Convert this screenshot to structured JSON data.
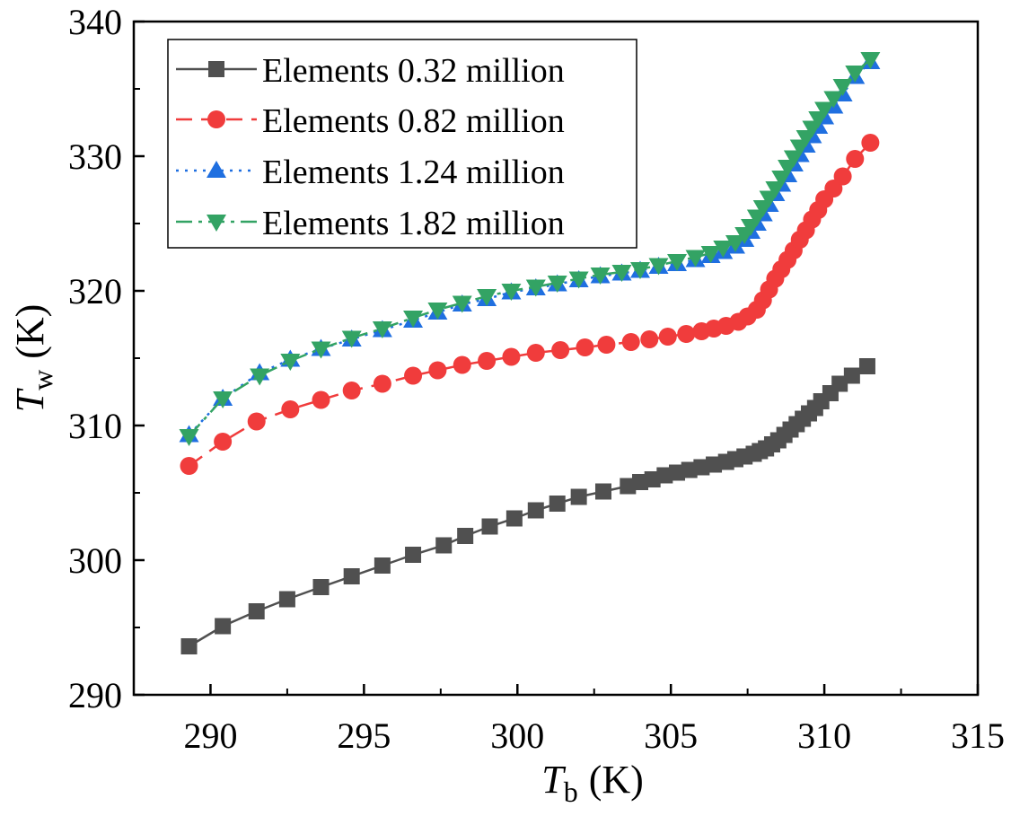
{
  "chart_data": {
    "type": "line",
    "xlabel": {
      "symbol": "T",
      "sub": "b",
      "unit": "(K)"
    },
    "ylabel": {
      "symbol": "T",
      "sub": "w",
      "unit": "(K)"
    },
    "xlim": [
      287.5,
      315
    ],
    "ylim": [
      290,
      340
    ],
    "xticks": [
      290,
      295,
      300,
      305,
      310,
      315
    ],
    "yticks": [
      290,
      300,
      310,
      320,
      330,
      340
    ],
    "xtick_labels": [
      "290",
      "295",
      "300",
      "305",
      "310",
      "315"
    ],
    "ytick_labels": [
      "290",
      "300",
      "310",
      "320",
      "330",
      "340"
    ],
    "legend_position": "top-left",
    "series": [
      {
        "name": "Elements 0.32 million",
        "color": "#505050",
        "dash": "solid",
        "marker": "square",
        "x": [
          289.3,
          290.4,
          291.5,
          292.5,
          293.6,
          294.6,
          295.6,
          296.6,
          297.6,
          298.3,
          299.1,
          299.9,
          300.6,
          301.3,
          302.0,
          302.8,
          303.6,
          304.0,
          304.4,
          304.8,
          305.2,
          305.6,
          306.0,
          306.4,
          306.8,
          307.1,
          307.4,
          307.7,
          307.9,
          308.1,
          308.3,
          308.5,
          308.7,
          308.9,
          309.1,
          309.3,
          309.5,
          309.7,
          309.9,
          310.2,
          310.5,
          310.9,
          311.4
        ],
        "y": [
          293.6,
          295.1,
          296.2,
          297.1,
          298.0,
          298.8,
          299.6,
          300.4,
          301.1,
          301.8,
          302.5,
          303.1,
          303.7,
          304.2,
          304.7,
          305.1,
          305.5,
          305.8,
          306.0,
          306.3,
          306.5,
          306.7,
          306.9,
          307.1,
          307.3,
          307.5,
          307.7,
          307.9,
          308.1,
          308.3,
          308.6,
          308.9,
          309.3,
          309.7,
          310.1,
          310.5,
          310.9,
          311.3,
          311.8,
          312.4,
          313.1,
          313.7,
          314.4
        ]
      },
      {
        "name": "Elements 0.82 million",
        "color": "#f03c3c",
        "dash": "dashed",
        "marker": "circle",
        "x": [
          289.3,
          290.4,
          291.5,
          292.6,
          293.6,
          294.6,
          295.6,
          296.6,
          297.4,
          298.2,
          299.0,
          299.8,
          300.6,
          301.4,
          302.2,
          302.9,
          303.7,
          304.3,
          304.9,
          305.5,
          306.0,
          306.4,
          306.8,
          307.2,
          307.5,
          307.8,
          308.0,
          308.2,
          308.4,
          308.6,
          308.8,
          309.0,
          309.2,
          309.4,
          309.6,
          309.8,
          310.0,
          310.3,
          310.6,
          311.0,
          311.5
        ],
        "y": [
          307.0,
          308.8,
          310.3,
          311.2,
          311.9,
          312.6,
          313.1,
          313.7,
          314.1,
          314.5,
          314.8,
          315.1,
          315.4,
          315.6,
          315.8,
          316.0,
          316.2,
          316.4,
          316.6,
          316.8,
          317.0,
          317.2,
          317.4,
          317.7,
          318.1,
          318.6,
          319.3,
          320.1,
          320.9,
          321.6,
          322.3,
          323.0,
          323.8,
          324.5,
          325.3,
          326.0,
          326.8,
          327.6,
          328.5,
          329.8,
          331.0
        ]
      },
      {
        "name": "Elements 1.24 million",
        "color": "#1f6fe0",
        "dash": "dotted",
        "marker": "triangle-up",
        "x": [
          289.3,
          290.4,
          291.6,
          292.6,
          293.6,
          294.6,
          295.6,
          296.6,
          297.4,
          298.2,
          299.0,
          299.8,
          300.6,
          301.3,
          302.0,
          302.7,
          303.4,
          304.0,
          304.6,
          305.2,
          305.8,
          306.3,
          306.7,
          307.1,
          307.4,
          307.6,
          307.8,
          308.0,
          308.2,
          308.4,
          308.6,
          308.8,
          309.0,
          309.2,
          309.4,
          309.6,
          309.8,
          310.0,
          310.3,
          310.6,
          311.0,
          311.5
        ],
        "y": [
          309.3,
          312.0,
          313.9,
          314.9,
          315.7,
          316.4,
          317.1,
          317.8,
          318.4,
          319.0,
          319.4,
          319.9,
          320.2,
          320.5,
          320.8,
          321.1,
          321.3,
          321.5,
          321.8,
          322.0,
          322.3,
          322.6,
          322.9,
          323.3,
          323.8,
          324.4,
          325.0,
          325.7,
          326.4,
          327.2,
          327.9,
          328.6,
          329.4,
          330.1,
          330.8,
          331.5,
          332.2,
          332.9,
          333.7,
          334.6,
          335.9,
          337.0
        ]
      },
      {
        "name": "Elements 1.82 million",
        "color": "#33a364",
        "dash": "dashdot",
        "marker": "triangle-down",
        "x": [
          289.3,
          290.4,
          291.6,
          292.6,
          293.6,
          294.6,
          295.6,
          296.6,
          297.4,
          298.2,
          299.0,
          299.8,
          300.6,
          301.3,
          302.0,
          302.7,
          303.4,
          304.0,
          304.6,
          305.2,
          305.8,
          306.3,
          306.7,
          307.1,
          307.4,
          307.6,
          307.8,
          308.0,
          308.2,
          308.4,
          308.6,
          308.8,
          309.0,
          309.2,
          309.4,
          309.6,
          309.8,
          310.0,
          310.3,
          310.6,
          311.0,
          311.5
        ],
        "y": [
          309.2,
          312.0,
          313.7,
          314.8,
          315.7,
          316.5,
          317.2,
          318.0,
          318.6,
          319.1,
          319.6,
          320.0,
          320.3,
          320.6,
          320.9,
          321.2,
          321.4,
          321.6,
          321.9,
          322.2,
          322.5,
          322.8,
          323.2,
          323.6,
          324.2,
          324.8,
          325.5,
          326.2,
          326.9,
          327.6,
          328.4,
          329.2,
          329.9,
          330.7,
          331.4,
          332.1,
          332.8,
          333.5,
          334.3,
          335.2,
          336.2,
          337.2
        ]
      }
    ]
  }
}
